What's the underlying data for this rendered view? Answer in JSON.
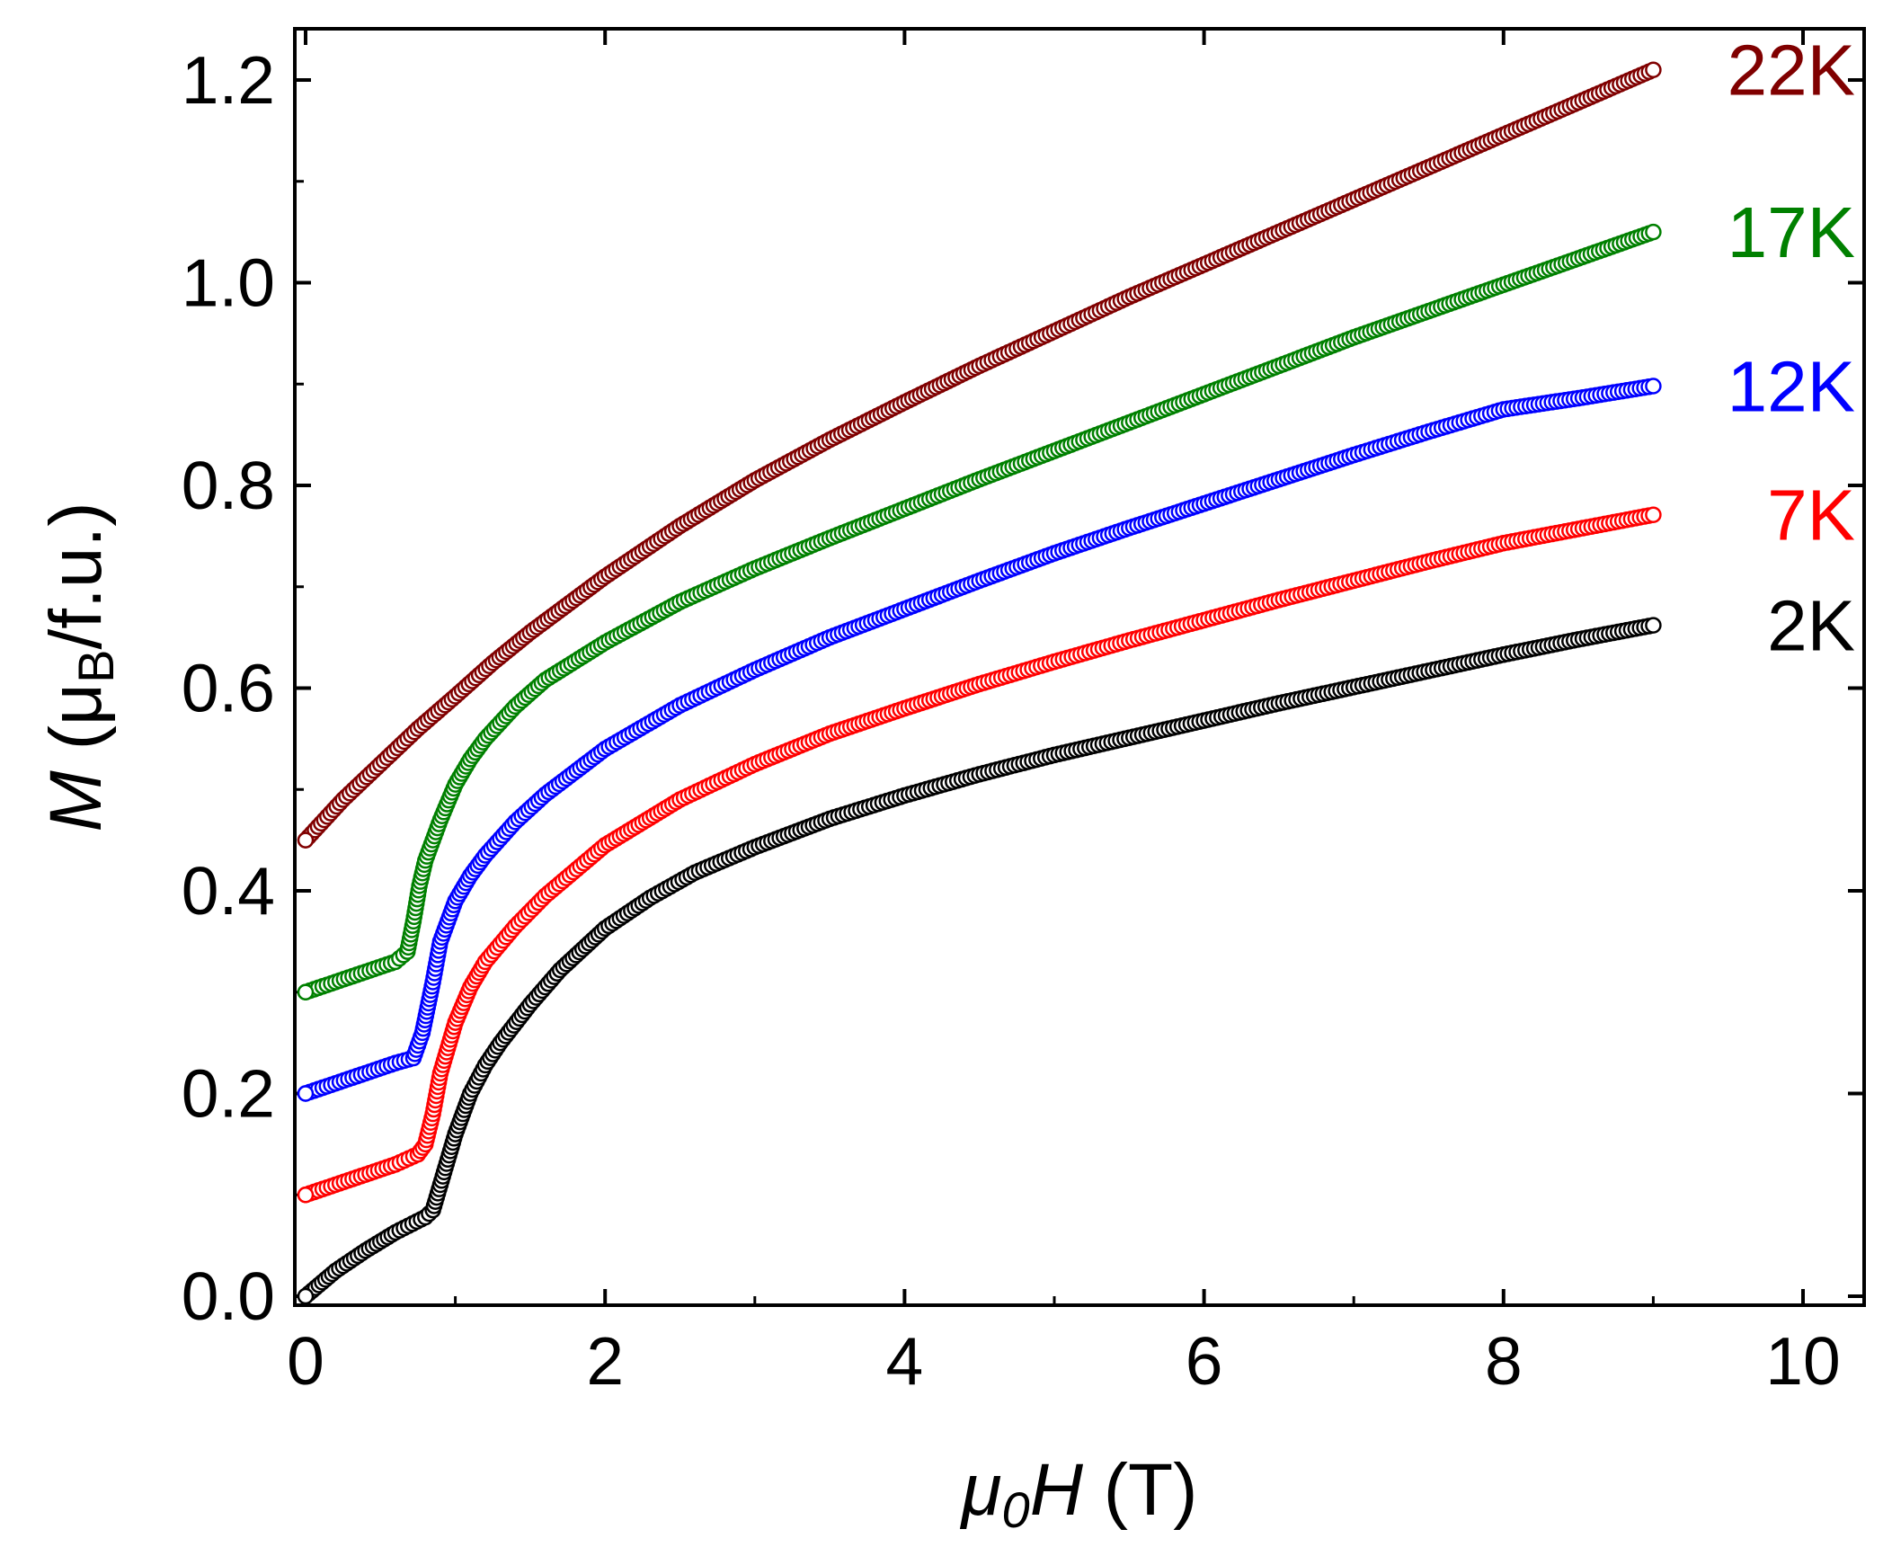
{
  "chart_data": {
    "type": "scatter",
    "title": "",
    "xlabel": {
      "symbol": "μ",
      "sub": "0",
      "var": "H",
      "unit": " (T)"
    },
    "ylabel": {
      "var": "M",
      "pre": " (μ",
      "sub": "B",
      "post": "/f.u.)"
    },
    "xlim": [
      0,
      10.5
    ],
    "ylim": [
      0,
      1.25
    ],
    "xticks": [
      0,
      2,
      4,
      6,
      8,
      10
    ],
    "xtick_labels": [
      "0",
      "2",
      "4",
      "6",
      "8",
      "10"
    ],
    "yticks": [
      0.0,
      0.2,
      0.4,
      0.6,
      0.8,
      1.0,
      1.2
    ],
    "ytick_labels": [
      "0.0",
      "0.2",
      "0.4",
      "0.6",
      "0.8",
      "1.0",
      "1.2"
    ],
    "marker": "open-circle",
    "series": [
      {
        "name": "2K",
        "label": "2K",
        "color": "#000000",
        "x": [
          0,
          0.2,
          0.4,
          0.6,
          0.8,
          0.85,
          0.9,
          1.0,
          1.1,
          1.2,
          1.3,
          1.5,
          1.7,
          2.0,
          2.3,
          2.6,
          3.0,
          3.5,
          4.0,
          4.5,
          5.0,
          5.5,
          6.0,
          6.5,
          7.0,
          7.5,
          8.0,
          8.5,
          9.0
        ],
        "y": [
          0,
          0.025,
          0.045,
          0.063,
          0.078,
          0.085,
          0.11,
          0.16,
          0.2,
          0.228,
          0.25,
          0.288,
          0.322,
          0.363,
          0.393,
          0.418,
          0.443,
          0.471,
          0.494,
          0.515,
          0.534,
          0.551,
          0.568,
          0.585,
          0.601,
          0.617,
          0.633,
          0.648,
          0.662
        ]
      },
      {
        "name": "7K",
        "label": "7K",
        "color": "#ff0000",
        "x": [
          0,
          0.2,
          0.4,
          0.6,
          0.75,
          0.8,
          0.85,
          0.9,
          1.0,
          1.1,
          1.2,
          1.4,
          1.6,
          2.0,
          2.5,
          3.0,
          3.5,
          4.0,
          4.5,
          5.0,
          5.5,
          6.0,
          6.5,
          7.0,
          7.5,
          8.0,
          8.5,
          9.0
        ],
        "y": [
          0.1,
          0.11,
          0.12,
          0.13,
          0.14,
          0.15,
          0.18,
          0.22,
          0.27,
          0.305,
          0.33,
          0.365,
          0.395,
          0.445,
          0.49,
          0.525,
          0.555,
          0.58,
          0.604,
          0.626,
          0.647,
          0.667,
          0.687,
          0.706,
          0.725,
          0.743,
          0.757,
          0.771
        ]
      },
      {
        "name": "12K",
        "label": "12K",
        "color": "#0000ff",
        "x": [
          0,
          0.2,
          0.4,
          0.6,
          0.72,
          0.78,
          0.85,
          0.9,
          1.0,
          1.1,
          1.2,
          1.4,
          1.6,
          2.0,
          2.5,
          3.0,
          3.5,
          4.0,
          4.5,
          5.0,
          5.5,
          6.0,
          6.5,
          7.0,
          7.5,
          8.0,
          8.5,
          9.0
        ],
        "y": [
          0.2,
          0.21,
          0.22,
          0.23,
          0.235,
          0.26,
          0.31,
          0.35,
          0.39,
          0.415,
          0.435,
          0.468,
          0.495,
          0.54,
          0.583,
          0.618,
          0.65,
          0.678,
          0.706,
          0.733,
          0.758,
          0.782,
          0.806,
          0.83,
          0.853,
          0.875,
          0.886,
          0.898
        ]
      },
      {
        "name": "17K",
        "label": "17K",
        "color": "#008000",
        "x": [
          0,
          0.2,
          0.4,
          0.6,
          0.68,
          0.72,
          0.76,
          0.8,
          0.9,
          1.0,
          1.1,
          1.2,
          1.4,
          1.6,
          2.0,
          2.5,
          3.0,
          3.5,
          4.0,
          4.5,
          5.0,
          5.5,
          6.0,
          6.5,
          7.0,
          7.5,
          8.0,
          8.5,
          9.0
        ],
        "y": [
          0.3,
          0.31,
          0.32,
          0.33,
          0.34,
          0.37,
          0.405,
          0.43,
          0.47,
          0.505,
          0.53,
          0.55,
          0.582,
          0.608,
          0.645,
          0.685,
          0.718,
          0.748,
          0.777,
          0.806,
          0.834,
          0.862,
          0.89,
          0.918,
          0.946,
          0.972,
          0.998,
          1.024,
          1.05
        ]
      },
      {
        "name": "22K",
        "label": "22K",
        "color": "#800000",
        "x": [
          0,
          0.25,
          0.5,
          0.75,
          1.0,
          1.25,
          1.5,
          2.0,
          2.5,
          3.0,
          3.5,
          4.0,
          4.5,
          5.0,
          5.5,
          6.0,
          6.5,
          7.0,
          7.5,
          8.0,
          8.5,
          9.0
        ],
        "y": [
          0.45,
          0.49,
          0.525,
          0.56,
          0.592,
          0.625,
          0.655,
          0.71,
          0.76,
          0.805,
          0.845,
          0.882,
          0.918,
          0.952,
          0.986,
          1.018,
          1.05,
          1.082,
          1.114,
          1.146,
          1.178,
          1.21
        ]
      }
    ]
  }
}
